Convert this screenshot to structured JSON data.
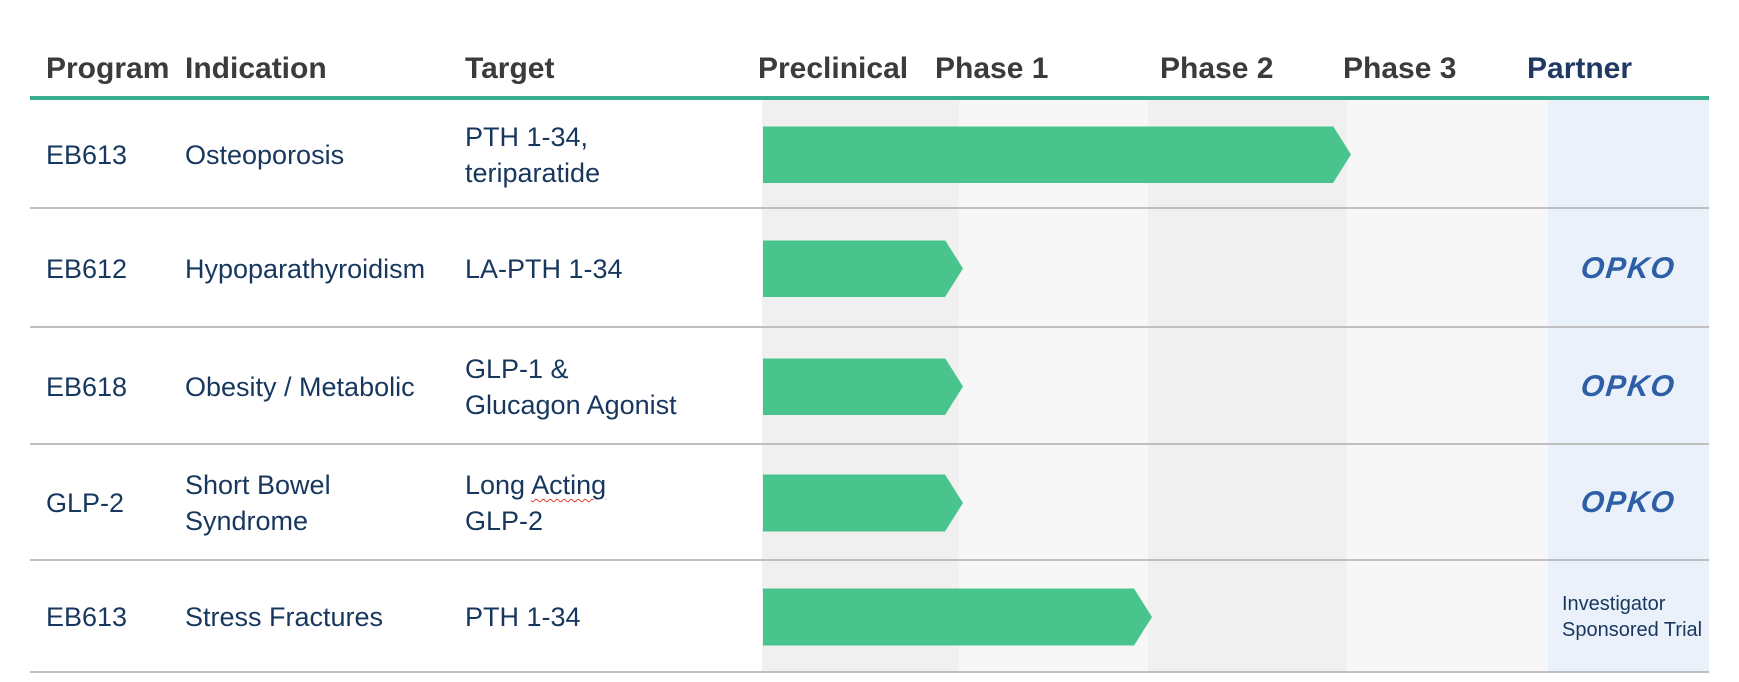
{
  "chart_data": {
    "type": "table",
    "subtype": "clinical-pipeline-gantt",
    "columns": [
      "Program",
      "Indication",
      "Target",
      "Preclinical",
      "Phase 1",
      "Phase 2",
      "Phase 3",
      "Partner"
    ],
    "phases": [
      "Preclinical",
      "Phase 1",
      "Phase 2",
      "Phase 3"
    ],
    "legend_position": "none",
    "grid": "alternating-column-bands",
    "rows": [
      {
        "program": "EB613",
        "indication_lines": [
          "Osteoporosis"
        ],
        "target_lines": [
          "PTH 1-34,",
          "teriparatide"
        ],
        "phases_completed": 3,
        "bar_through": "Phase 2",
        "partner": {
          "kind": "none",
          "text": "",
          "lines": []
        }
      },
      {
        "program": "EB612",
        "indication_lines": [
          "Hypoparathyroidism"
        ],
        "target_lines": [
          "LA-PTH 1-34"
        ],
        "phases_completed": 1,
        "bar_through": "Preclinical",
        "partner": {
          "kind": "logo",
          "text": "OPKO",
          "lines": [
            "OPKO"
          ]
        }
      },
      {
        "program": "EB618",
        "indication_lines": [
          "Obesity / Metabolic"
        ],
        "target_lines": [
          "GLP-1 &",
          "Glucagon Agonist"
        ],
        "phases_completed": 1,
        "bar_through": "Preclinical",
        "partner": {
          "kind": "logo",
          "text": "OPKO",
          "lines": [
            "OPKO"
          ]
        }
      },
      {
        "program": "GLP-2",
        "indication_lines": [
          "Short Bowel",
          "Syndrome"
        ],
        "target_lines": [
          "Long Acting",
          "GLP-2"
        ],
        "misspelled_word": "Acting",
        "phases_completed": 1,
        "bar_through": "Preclinical",
        "partner": {
          "kind": "logo",
          "text": "OPKO",
          "lines": [
            "OPKO"
          ]
        }
      },
      {
        "program": "EB613",
        "indication_lines": [
          "Stress Fractures"
        ],
        "target_lines": [
          "PTH 1-34"
        ],
        "phases_completed": 2,
        "bar_through": "Phase 1",
        "partner": {
          "kind": "text",
          "text": "Investigator Sponsored Trial",
          "lines": [
            "Investigator",
            "Sponsored Trial"
          ]
        }
      }
    ],
    "colors": {
      "bar_green": "#4AC48D",
      "header_rule_teal": "#3BAE8F",
      "band_shade_a": "#F0F0F0",
      "band_shade_b": "#F7F7F7",
      "partner_band_blue": "#EAF1FB",
      "row_divider": "#BFBFBF",
      "body_text_navy": "#17375E",
      "header_text": "#3B3B3B",
      "partner_header_navy": "#1F3864",
      "opko_blue": "#2E5EA6",
      "spellcheck_red": "#E03C31"
    }
  }
}
